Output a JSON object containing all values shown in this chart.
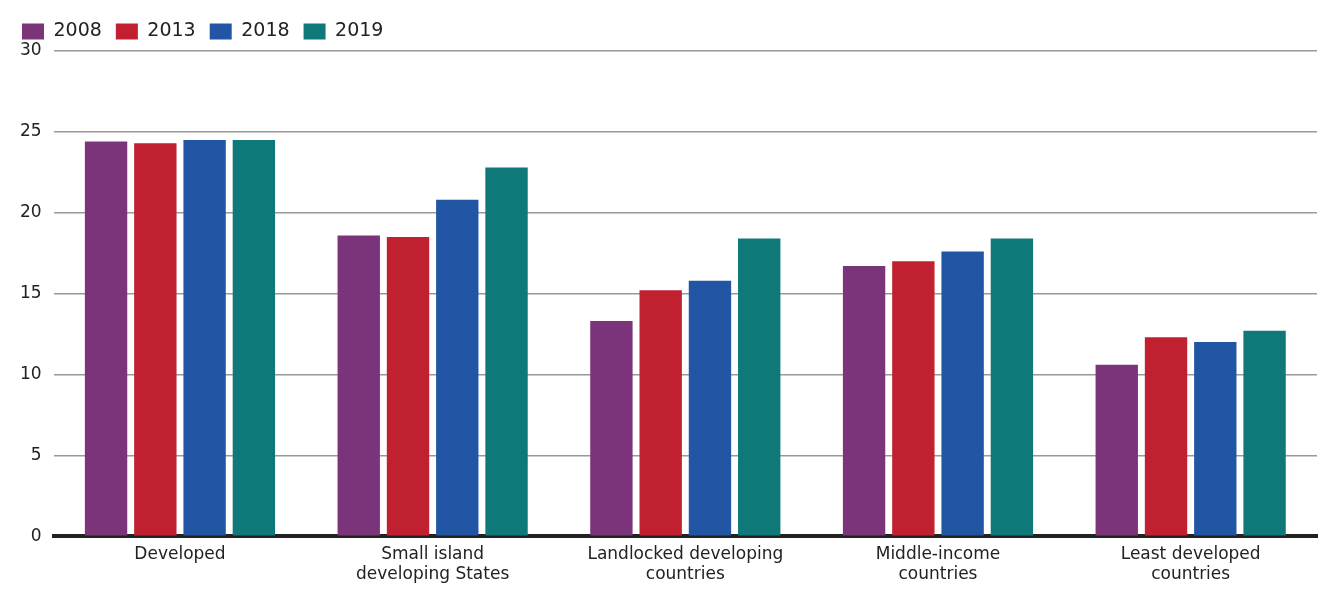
{
  "chart_data": {
    "type": "bar",
    "categories": [
      "Developed",
      "Small island developing States",
      "Landlocked developing countries",
      "Middle-income countries",
      "Least developed countries"
    ],
    "series": [
      {
        "name": "2008",
        "color": "#7b3379",
        "values": [
          24.4,
          18.6,
          13.3,
          16.7,
          10.6
        ]
      },
      {
        "name": "2013",
        "color": "#c0202f",
        "values": [
          24.3,
          18.5,
          15.2,
          17.0,
          12.3
        ]
      },
      {
        "name": "2018",
        "color": "#2255a4",
        "values": [
          24.5,
          20.8,
          15.8,
          17.6,
          12.0
        ]
      },
      {
        "name": "2019",
        "color": "#0f7878",
        "values": [
          24.5,
          22.8,
          18.4,
          18.4,
          12.7
        ]
      }
    ],
    "ylim": [
      0,
      30
    ],
    "yticks": [
      0,
      5,
      10,
      15,
      20,
      25,
      30
    ],
    "grid": "y",
    "legend": "top left"
  }
}
